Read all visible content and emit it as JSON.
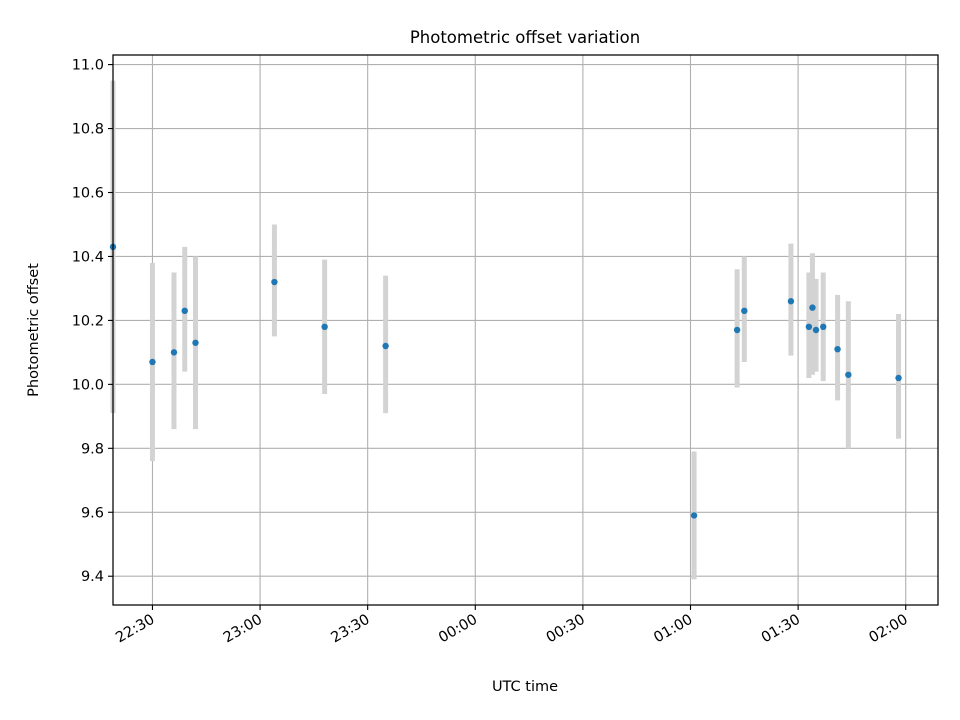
{
  "chart_data": {
    "type": "scatter",
    "title": "Photometric offset variation",
    "xlabel": "UTC time",
    "ylabel": "Photometric offset",
    "x_axis": {
      "kind": "time",
      "range": [
        "22:19",
        "02:09"
      ],
      "ticks": [
        "22:30",
        "23:00",
        "23:30",
        "00:00",
        "00:30",
        "01:00",
        "01:30",
        "02:00"
      ],
      "tick_rotation": 30
    },
    "y_axis": {
      "range": [
        9.31,
        11.03
      ],
      "ticks": [
        "9.4",
        "9.6",
        "9.8",
        "10.0",
        "10.2",
        "10.4",
        "10.6",
        "10.8",
        "11.0"
      ]
    },
    "grid": true,
    "legend": "none",
    "colors": {
      "marker": "#1f77b4",
      "errorbar": "#d3d3d3",
      "grid": "#b0b0b0"
    },
    "series": [
      {
        "points": [
          {
            "x": "22:19",
            "y": 10.43,
            "y_low": 9.91,
            "y_high": 10.95
          },
          {
            "x": "22:30",
            "y": 10.07,
            "y_low": 9.76,
            "y_high": 10.38
          },
          {
            "x": "22:36",
            "y": 10.1,
            "y_low": 9.86,
            "y_high": 10.35
          },
          {
            "x": "22:39",
            "y": 10.23,
            "y_low": 10.04,
            "y_high": 10.43
          },
          {
            "x": "22:42",
            "y": 10.13,
            "y_low": 9.86,
            "y_high": 10.4
          },
          {
            "x": "23:04",
            "y": 10.32,
            "y_low": 10.15,
            "y_high": 10.5
          },
          {
            "x": "23:18",
            "y": 10.18,
            "y_low": 9.97,
            "y_high": 10.39
          },
          {
            "x": "23:35",
            "y": 10.12,
            "y_low": 9.91,
            "y_high": 10.34
          },
          {
            "x": "01:01",
            "y": 9.59,
            "y_low": 9.39,
            "y_high": 9.79
          },
          {
            "x": "01:13",
            "y": 10.17,
            "y_low": 9.99,
            "y_high": 10.36
          },
          {
            "x": "01:15",
            "y": 10.23,
            "y_low": 10.07,
            "y_high": 10.4
          },
          {
            "x": "01:28",
            "y": 10.26,
            "y_low": 10.09,
            "y_high": 10.44
          },
          {
            "x": "01:33",
            "y": 10.18,
            "y_low": 10.02,
            "y_high": 10.35
          },
          {
            "x": "01:34",
            "y": 10.24,
            "y_low": 10.03,
            "y_high": 10.41
          },
          {
            "x": "01:35",
            "y": 10.17,
            "y_low": 10.04,
            "y_high": 10.33
          },
          {
            "x": "01:37",
            "y": 10.18,
            "y_low": 10.01,
            "y_high": 10.35
          },
          {
            "x": "01:41",
            "y": 10.11,
            "y_low": 9.95,
            "y_high": 10.28
          },
          {
            "x": "01:44",
            "y": 10.03,
            "y_low": 9.8,
            "y_high": 10.26
          },
          {
            "x": "01:58",
            "y": 10.02,
            "y_low": 9.83,
            "y_high": 10.22
          }
        ]
      }
    ]
  }
}
